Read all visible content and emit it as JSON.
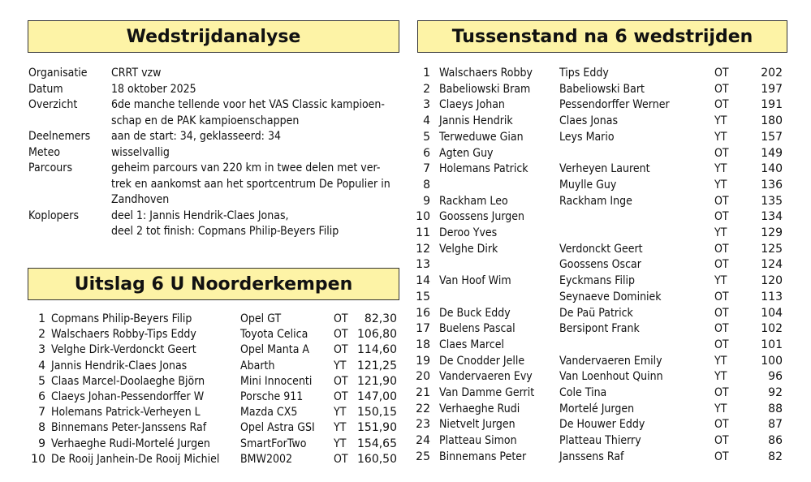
{
  "analysis": {
    "title": "Wedstrijdanalyse",
    "rows": [
      {
        "label": "Organisatie",
        "lines": [
          "CRRT vzw"
        ]
      },
      {
        "label": "Datum",
        "lines": [
          "18 oktober 2025"
        ]
      },
      {
        "label": "Overzicht",
        "lines": [
          "6de manche tellende voor het VAS Classic kampioen-",
          "schap en de PAK kampioenschappen"
        ]
      },
      {
        "label": "Deelnemers",
        "lines": [
          "aan de start: 34, geklasseerd: 34"
        ]
      },
      {
        "label": "Meteo",
        "lines": [
          "wisselvallig"
        ]
      },
      {
        "label": "Parcours",
        "lines": [
          "geheim parcours van 220 km in twee delen met ver-",
          "trek en aankomst aan het sportcentrum De Populier in",
          "Zandhoven"
        ]
      },
      {
        "label": "Koplopers",
        "lines": [
          "deel 1:  Jannis Hendrik-Claes Jonas,",
          "deel 2 tot finish: Copmans Philip-Beyers Filip"
        ]
      }
    ]
  },
  "results": {
    "title": "Uitslag 6 U Noorderkempen",
    "rows": [
      [
        1,
        "Copmans Philip-Beyers Filip",
        "Opel GT",
        "OT",
        "82,30"
      ],
      [
        2,
        "Walschaers Robby-Tips Eddy",
        "Toyota Celica",
        "OT",
        "106,80"
      ],
      [
        3,
        "Velghe Dirk-Verdonckt Geert",
        "Opel Manta A",
        "OT",
        "114,60"
      ],
      [
        4,
        "Jannis Hendrik-Claes Jonas",
        "Abarth",
        "YT",
        "121,25"
      ],
      [
        5,
        "Claas Marcel-Doolaeghe Björn",
        "Mini Innocenti",
        "OT",
        "121,90"
      ],
      [
        6,
        "Claeys Johan-Pessendorffer W",
        "Porsche 911",
        "OT",
        "147,00"
      ],
      [
        7,
        "Holemans Patrick-Verheyen L",
        "Mazda CX5",
        "YT",
        "150,15"
      ],
      [
        8,
        "Binnemans Peter-Janssens Raf",
        "Opel Astra GSI",
        "YT",
        "151,90"
      ],
      [
        9,
        "Verhaeghe Rudi-Mortelé Jurgen",
        "SmartForTwo",
        "YT",
        "154,65"
      ],
      [
        10,
        "De Rooij Janhein-De Rooij Michiel",
        "BMW2002",
        "OT",
        "160,50"
      ]
    ]
  },
  "standings": {
    "title": "Tussenstand na 6 wedstrijden",
    "rows": [
      [
        1,
        "Walschaers Robby",
        "Tips Eddy",
        "OT",
        202
      ],
      [
        2,
        "Babeliowski Bram",
        "Babeliowski Bart",
        "OT",
        197
      ],
      [
        3,
        "Claeys Johan",
        "Pessendorffer Werner",
        "OT",
        191
      ],
      [
        4,
        "Jannis Hendrik",
        "Claes Jonas",
        "YT",
        180
      ],
      [
        5,
        "Terweduwe Gian",
        "Leys Mario",
        "YT",
        157
      ],
      [
        6,
        "Agten Guy",
        null,
        "OT",
        149
      ],
      [
        7,
        "Holemans Patrick",
        "Verheyen Laurent",
        "YT",
        140
      ],
      [
        8,
        null,
        "Muylle Guy",
        "YT",
        136
      ],
      [
        9,
        "Rackham Leo",
        "Rackham Inge",
        "OT",
        135
      ],
      [
        10,
        "Goossens Jurgen",
        null,
        "OT",
        134
      ],
      [
        11,
        "Deroo Yves",
        null,
        "YT",
        129
      ],
      [
        12,
        "Velghe Dirk",
        "Verdonckt Geert",
        "OT",
        125
      ],
      [
        13,
        null,
        "Goossens Oscar",
        "OT",
        124
      ],
      [
        14,
        "Van Hoof Wim",
        "Eyckmans Filip",
        "YT",
        120
      ],
      [
        15,
        null,
        "Seynaeve Dominiek",
        "OT",
        113
      ],
      [
        16,
        "De Buck Eddy",
        "De Paü Patrick",
        "OT",
        104
      ],
      [
        17,
        "Buelens Pascal",
        "Bersipont Frank",
        "OT",
        102
      ],
      [
        18,
        "Claes Marcel",
        null,
        "OT",
        101
      ],
      [
        19,
        "De Cnodder Jelle",
        "Vandervaeren Emily",
        "YT",
        100
      ],
      [
        20,
        "Vandervaeren Evy",
        "Van Loenhout Quinn",
        "YT",
        96
      ],
      [
        21,
        "Van Damme Gerrit",
        "Cole Tina",
        "OT",
        92
      ],
      [
        22,
        "Verhaeghe Rudi",
        "Mortelé Jurgen",
        "YT",
        88
      ],
      [
        23,
        "Nietvelt Jurgen",
        "De Houwer Eddy",
        "OT",
        87
      ],
      [
        24,
        "Platteau Simon",
        "Platteau Thierry",
        "OT",
        86
      ],
      [
        25,
        "Binnemans Peter",
        "Janssens Raf",
        "OT",
        82
      ]
    ]
  }
}
